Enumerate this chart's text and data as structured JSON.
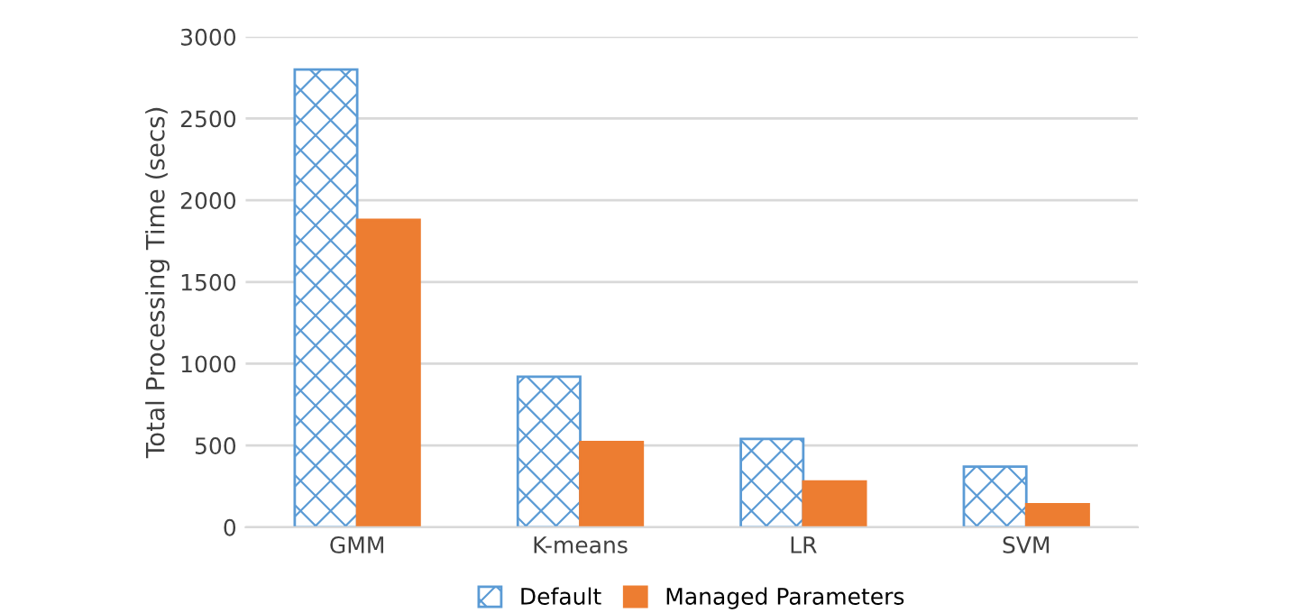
{
  "chart_data": {
    "type": "bar",
    "ylabel": "Total Processing Time (secs)",
    "categories": [
      "GMM",
      "K-means",
      "LR",
      "SVM"
    ],
    "series": [
      {
        "name": "Default",
        "color": "#5b9bd5",
        "values": [
          2800,
          920,
          540,
          370
        ]
      },
      {
        "name": "Managed Parameters",
        "color": "#ed7d31",
        "values": [
          1880,
          520,
          280,
          140
        ]
      }
    ],
    "ylim": [
      0,
      3000
    ],
    "yticks": [
      0,
      500,
      1000,
      1500,
      2000,
      2500,
      3000
    ],
    "grid": "y",
    "legend": "bottom"
  }
}
